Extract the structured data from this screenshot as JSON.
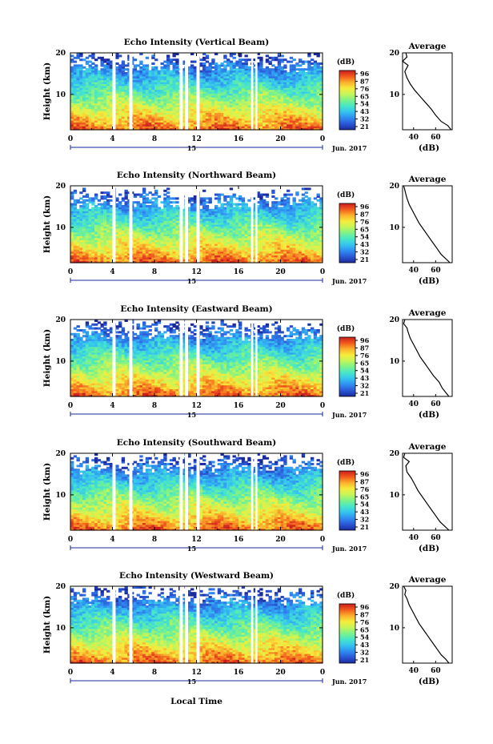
{
  "figure": {
    "xlabel": "Local Time",
    "date_label": "Jun. 2017",
    "day_label": "15",
    "colorbar_unit": "(dB)",
    "avg_title": "Average",
    "avg_xlabel": "(dB)"
  },
  "colormap": {
    "stops": [
      "#1a2a9c",
      "#2b58d6",
      "#2f8df0",
      "#35c3f0",
      "#47e6c8",
      "#7bf28a",
      "#c4f55a",
      "#f6ec3c",
      "#fbb02c",
      "#f25a1c",
      "#c81e1e"
    ]
  },
  "chart_data": [
    {
      "type": "heatmap",
      "title": "Echo Intensity (Vertical Beam)",
      "ylabel": "Height (km)",
      "x_ticks": [
        "0",
        "4",
        "8",
        "12",
        "16",
        "20",
        "0"
      ],
      "y_ticks": [
        "10",
        "20"
      ],
      "ylim": [
        1.5,
        20
      ],
      "xlim": [
        0,
        24
      ],
      "colorbar_ticks": [
        "96",
        "87",
        "76",
        "65",
        "54",
        "43",
        "32",
        "21"
      ],
      "clim": [
        21,
        96
      ],
      "data_gaps_hours": [
        [
          4.0,
          4.3
        ],
        [
          5.6,
          5.9
        ],
        [
          10.4,
          10.7
        ],
        [
          10.9,
          11.2
        ],
        [
          12.0,
          12.3
        ],
        [
          17.2,
          17.4
        ],
        [
          17.6,
          17.8
        ]
      ],
      "echo_top_km": 17.5,
      "average_profile": {
        "title": "Average",
        "xlabel": "(dB)",
        "xticks": [
          "40",
          "60"
        ],
        "yticks": [
          "10",
          "20"
        ],
        "xlim": [
          30,
          75
        ],
        "height_km": [
          1.5,
          2.5,
          3.5,
          5,
          6.5,
          8,
          9.5,
          11,
          12.5,
          14,
          15.5,
          17,
          18,
          19,
          20
        ],
        "values_db": [
          74,
          71,
          65,
          60,
          56,
          51,
          46,
          41,
          37,
          34,
          32,
          35,
          30,
          34,
          33
        ]
      }
    },
    {
      "type": "heatmap",
      "title": "Echo Intensity (Northward Beam)",
      "ylabel": "Height (km)",
      "x_ticks": [
        "0",
        "4",
        "8",
        "12",
        "16",
        "20",
        "0"
      ],
      "y_ticks": [
        "10",
        "20"
      ],
      "ylim": [
        1.5,
        20
      ],
      "xlim": [
        0,
        24
      ],
      "colorbar_ticks": [
        "96",
        "87",
        "76",
        "65",
        "54",
        "43",
        "32",
        "21"
      ],
      "clim": [
        21,
        96
      ],
      "data_gaps_hours": [
        [
          4.0,
          4.3
        ],
        [
          5.6,
          5.9
        ],
        [
          10.4,
          10.7
        ],
        [
          10.9,
          11.2
        ],
        [
          12.0,
          12.3
        ],
        [
          17.2,
          17.4
        ],
        [
          17.6,
          17.8
        ]
      ],
      "echo_top_km": 16.5,
      "average_profile": {
        "title": "Average",
        "xlabel": "(dB)",
        "xticks": [
          "40",
          "60"
        ],
        "yticks": [
          "10",
          "20"
        ],
        "xlim": [
          30,
          75
        ],
        "height_km": [
          1.5,
          2.5,
          3.5,
          5,
          6.5,
          8,
          9.5,
          11,
          12.5,
          14,
          15.5,
          17,
          18,
          19,
          20
        ],
        "values_db": [
          73,
          69,
          65,
          61,
          57,
          53,
          49,
          45,
          42,
          39,
          36,
          34,
          33,
          32,
          31
        ]
      }
    },
    {
      "type": "heatmap",
      "title": "Echo Intensity (Eastward Beam)",
      "ylabel": "Height (km)",
      "x_ticks": [
        "0",
        "4",
        "8",
        "12",
        "16",
        "20",
        "0"
      ],
      "y_ticks": [
        "10",
        "20"
      ],
      "ylim": [
        1.5,
        20
      ],
      "xlim": [
        0,
        24
      ],
      "colorbar_ticks": [
        "96",
        "87",
        "76",
        "65",
        "54",
        "43",
        "32",
        "21"
      ],
      "clim": [
        21,
        96
      ],
      "data_gaps_hours": [
        [
          4.0,
          4.3
        ],
        [
          5.6,
          5.9
        ],
        [
          10.4,
          10.7
        ],
        [
          10.9,
          11.2
        ],
        [
          12.0,
          12.3
        ],
        [
          17.2,
          17.4
        ],
        [
          17.6,
          17.8
        ]
      ],
      "echo_top_km": 17.0,
      "average_profile": {
        "title": "Average",
        "xlabel": "(dB)",
        "xticks": [
          "40",
          "60"
        ],
        "yticks": [
          "10",
          "20"
        ],
        "xlim": [
          30,
          75
        ],
        "height_km": [
          1.5,
          2.5,
          3.5,
          5,
          6.5,
          8,
          9.5,
          11,
          12.5,
          14,
          15.5,
          17,
          18,
          19,
          20
        ],
        "values_db": [
          72,
          69,
          66,
          63,
          58,
          54,
          50,
          46,
          43,
          40,
          37,
          35,
          34,
          31,
          32
        ]
      }
    },
    {
      "type": "heatmap",
      "title": "Echo Intensity (Southward Beam)",
      "ylabel": "Height (km)",
      "x_ticks": [
        "0",
        "4",
        "8",
        "12",
        "16",
        "20",
        "0"
      ],
      "y_ticks": [
        "10",
        "20"
      ],
      "ylim": [
        1.5,
        20
      ],
      "xlim": [
        0,
        24
      ],
      "colorbar_ticks": [
        "96",
        "87",
        "76",
        "65",
        "54",
        "43",
        "32",
        "21"
      ],
      "clim": [
        21,
        96
      ],
      "data_gaps_hours": [
        [
          4.0,
          4.3
        ],
        [
          5.6,
          5.9
        ],
        [
          10.4,
          10.7
        ],
        [
          10.9,
          11.2
        ],
        [
          12.0,
          12.3
        ],
        [
          17.2,
          17.4
        ],
        [
          17.6,
          17.8
        ]
      ],
      "echo_top_km": 17.0,
      "average_profile": {
        "title": "Average",
        "xlabel": "(dB)",
        "xticks": [
          "40",
          "60"
        ],
        "yticks": [
          "10",
          "20"
        ],
        "xlim": [
          30,
          75
        ],
        "height_km": [
          1.5,
          2.5,
          3.5,
          5,
          6.5,
          8,
          9.5,
          11,
          12.5,
          14,
          15.5,
          17,
          18,
          19,
          20
        ],
        "values_db": [
          72,
          68,
          64,
          60,
          56,
          52,
          48,
          44,
          41,
          38,
          34,
          33,
          36,
          31,
          32
        ]
      }
    },
    {
      "type": "heatmap",
      "title": "Echo Intensity (Westward Beam)",
      "ylabel": "Height (km)",
      "x_ticks": [
        "0",
        "4",
        "8",
        "12",
        "16",
        "20",
        "0"
      ],
      "y_ticks": [
        "10",
        "20"
      ],
      "ylim": [
        1.5,
        20
      ],
      "xlim": [
        0,
        24
      ],
      "colorbar_ticks": [
        "96",
        "87",
        "76",
        "65",
        "54",
        "43",
        "32",
        "21"
      ],
      "clim": [
        21,
        96
      ],
      "data_gaps_hours": [
        [
          4.0,
          4.3
        ],
        [
          5.6,
          5.9
        ],
        [
          10.4,
          10.7
        ],
        [
          10.9,
          11.2
        ],
        [
          12.0,
          12.3
        ],
        [
          17.2,
          17.4
        ],
        [
          17.6,
          17.8
        ]
      ],
      "echo_top_km": 17.5,
      "average_profile": {
        "title": "Average",
        "xlabel": "(dB)",
        "xticks": [
          "40",
          "60"
        ],
        "yticks": [
          "10",
          "20"
        ],
        "xlim": [
          30,
          75
        ],
        "height_km": [
          1.5,
          2.5,
          3.5,
          5,
          6.5,
          8,
          9.5,
          11,
          12.5,
          14,
          15.5,
          17,
          18,
          19,
          20
        ],
        "values_db": [
          72,
          69,
          65,
          61,
          57,
          53,
          49,
          45,
          42,
          39,
          36,
          34,
          32,
          33,
          31
        ]
      }
    }
  ]
}
